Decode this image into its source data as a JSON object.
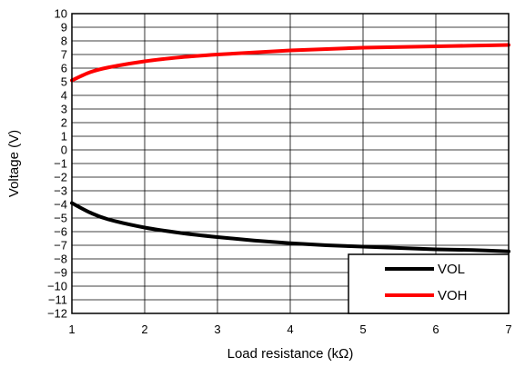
{
  "chart_data": {
    "type": "line",
    "xlabel": "Load resistance (kΩ)",
    "ylabel": "Voltage (V)",
    "xlim": [
      1,
      7
    ],
    "ylim": [
      -12,
      10
    ],
    "x_ticks": [
      "1",
      "2",
      "3",
      "4",
      "5",
      "6",
      "7"
    ],
    "y_ticks": [
      "10",
      "9",
      "8",
      "7",
      "6",
      "5",
      "4",
      "3",
      "2",
      "1",
      "0",
      "−1",
      "−2",
      "−3",
      "−4",
      "−5",
      "−6",
      "−7",
      "−8",
      "−9",
      "−10",
      "−11",
      "−12"
    ],
    "grid": true,
    "legend_position": "bottom-right",
    "series": [
      {
        "name": "VOL",
        "color": "#000000",
        "x": [
          1,
          1.25,
          1.5,
          2,
          2.5,
          3,
          3.5,
          4,
          4.5,
          5,
          5.5,
          6,
          6.5,
          7
        ],
        "y": [
          -3.9,
          -4.6,
          -5.1,
          -5.7,
          -6.1,
          -6.4,
          -6.65,
          -6.85,
          -7.0,
          -7.1,
          -7.2,
          -7.3,
          -7.35,
          -7.45
        ]
      },
      {
        "name": "VOH",
        "color": "#ff0000",
        "x": [
          1,
          1.25,
          1.5,
          2,
          2.5,
          3,
          3.5,
          4,
          4.5,
          5,
          5.5,
          6,
          6.5,
          7
        ],
        "y": [
          5.1,
          5.7,
          6.05,
          6.5,
          6.8,
          7.0,
          7.15,
          7.3,
          7.4,
          7.5,
          7.55,
          7.6,
          7.65,
          7.7
        ]
      }
    ]
  }
}
